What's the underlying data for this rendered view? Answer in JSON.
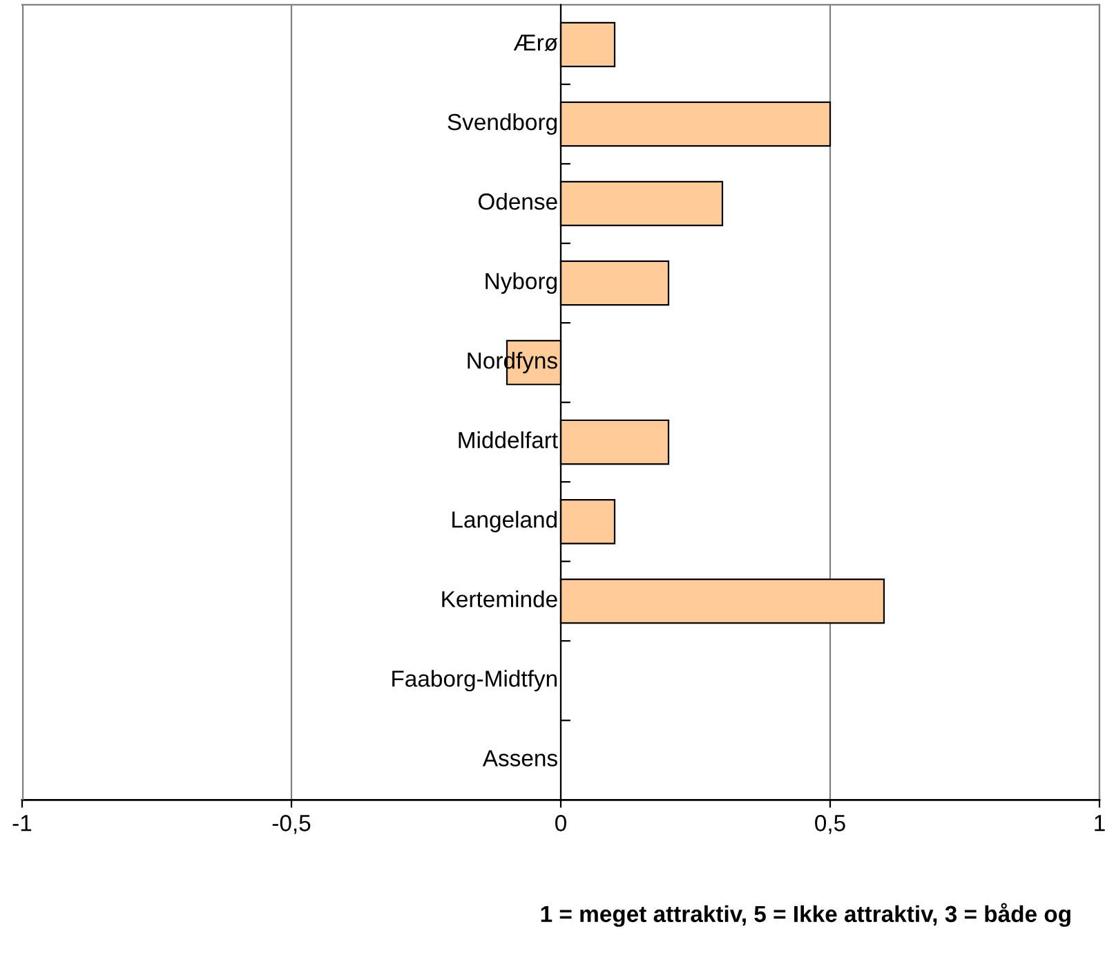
{
  "chart_data": {
    "type": "bar",
    "orientation": "horizontal",
    "categories": [
      "Ærø",
      "Svendborg",
      "Odense",
      "Nyborg",
      "Nordfyns",
      "Middelfart",
      "Langeland",
      "Kerteminde",
      "Faaborg-Midtfyn",
      "Assens"
    ],
    "values": [
      0.1,
      0.5,
      0.3,
      0.2,
      -0.1,
      0.2,
      0.1,
      0.6,
      0,
      0
    ],
    "color": "#ffcc99",
    "xlim": [
      -1,
      1
    ],
    "xticks": [
      -1,
      {
        "value": -0.5,
        "label": "-0,5"
      },
      0,
      {
        "value": 0.5,
        "label": "0,5"
      },
      1
    ],
    "grid": "x",
    "xlabel": "1 = meget attraktiv, 5 = Ikke attraktiv, 3 = både og"
  }
}
